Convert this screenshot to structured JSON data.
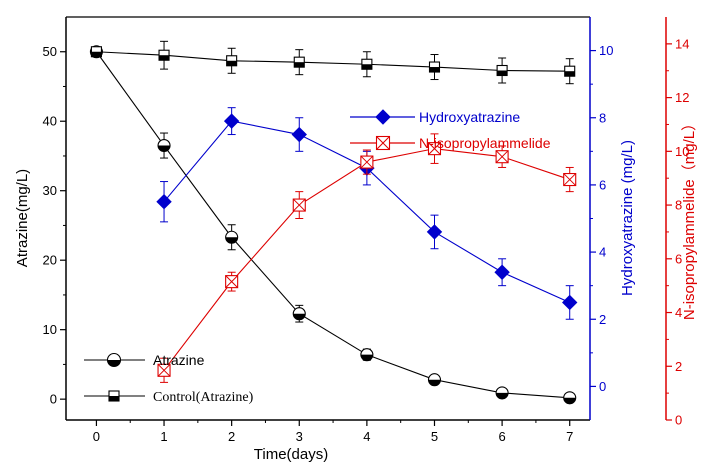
{
  "chart_data": {
    "type": "line",
    "x": [
      0,
      1,
      2,
      3,
      4,
      5,
      6,
      7
    ],
    "xlabel": "Time(days)",
    "xlim": [
      -0.45,
      7.3
    ],
    "x_ticks": [
      "0",
      "1",
      "2",
      "3",
      "4",
      "5",
      "6",
      "7"
    ],
    "axes": {
      "left": {
        "label": "Atrazine(mg/L)",
        "ylim": [
          -3,
          55
        ],
        "ticks": [
          0,
          10,
          20,
          30,
          40,
          50
        ],
        "color": "#000000"
      },
      "right1": {
        "label": "Hydroxyatrazine (mg/L)",
        "ylim": [
          -1,
          11
        ],
        "ticks": [
          0,
          2,
          4,
          6,
          8,
          10
        ],
        "color": "#0000CC"
      },
      "right2": {
        "label": "N-isopropylammelide（mg/L）",
        "ylim": [
          0,
          15
        ],
        "ticks": [
          0,
          2,
          4,
          6,
          8,
          10,
          12,
          14
        ],
        "color": "#DD0000"
      }
    },
    "series": [
      {
        "name": "Atrazine",
        "axis": "left",
        "color": "#000000",
        "marker": "half-circle",
        "x": [
          0,
          1,
          2,
          3,
          4,
          5,
          6,
          7
        ],
        "values": [
          50,
          36.5,
          23.3,
          12.3,
          6.4,
          2.8,
          0.9,
          0.2
        ],
        "errors": [
          0.3,
          1.8,
          1.8,
          1.2,
          0.8,
          0.5,
          0.5,
          0.5
        ]
      },
      {
        "name": "Control(Atrazine)",
        "axis": "left",
        "color": "#000000",
        "marker": "half-square",
        "x": [
          0,
          1,
          2,
          3,
          4,
          5,
          6,
          7
        ],
        "values": [
          50,
          49.5,
          48.7,
          48.5,
          48.2,
          47.8,
          47.3,
          47.2
        ],
        "errors": [
          0.3,
          2.0,
          1.8,
          1.8,
          1.8,
          1.8,
          1.8,
          1.8
        ]
      },
      {
        "name": "Hydroxyatrazine",
        "axis": "right1",
        "color": "#0000CC",
        "marker": "diamond",
        "x": [
          1,
          2,
          3,
          4,
          5,
          6,
          7
        ],
        "values": [
          5.5,
          7.9,
          7.5,
          6.5,
          4.6,
          3.4,
          2.5
        ],
        "errors": [
          0.6,
          0.4,
          0.5,
          0.5,
          0.5,
          0.4,
          0.5
        ]
      },
      {
        "name": "N-isopropylammelide",
        "axis": "right2",
        "color": "#DD0000",
        "marker": "crossed-square",
        "x": [
          1,
          2,
          3,
          4,
          5,
          6,
          7
        ],
        "values": [
          1.85,
          5.15,
          8.0,
          9.6,
          10.1,
          9.8,
          8.95
        ],
        "errors": [
          0.45,
          0.35,
          0.5,
          0.45,
          0.55,
          0.4,
          0.45
        ]
      }
    ],
    "legends": [
      {
        "items": [
          "Hydroxyatrazine",
          "N-isopropylammelide"
        ],
        "position": "upper-middle"
      },
      {
        "items": [
          "Atrazine",
          "Control(Atrazine)"
        ],
        "position": "bottom-left"
      }
    ]
  }
}
